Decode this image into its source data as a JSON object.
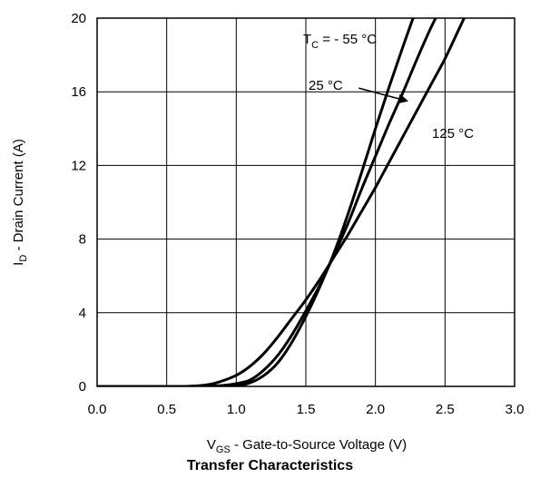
{
  "figure_caption": "Transfer Characteristics",
  "chart_data": {
    "type": "line",
    "title": "",
    "xlabel": {
      "main": "V",
      "sub": "GS",
      "rest": " - Gate-to-Source Voltage (V)"
    },
    "ylabel": {
      "main": "I",
      "sub": "D",
      "rest": " - Drain Current  (A)"
    },
    "xlim": [
      0.0,
      3.0
    ],
    "ylim": [
      0,
      20
    ],
    "x_ticks": [
      "0.0",
      "0.5",
      "1.0",
      "1.5",
      "2.0",
      "2.5",
      "3.0"
    ],
    "y_ticks": [
      "0",
      "4",
      "8",
      "12",
      "16",
      "20"
    ],
    "grid": true,
    "annotations": {
      "tc_prefix": "T",
      "tc_sub": "C",
      "tc_rest": " = - 55 °C",
      "t25": "25 °C",
      "t125": "125 °C"
    },
    "series": [
      {
        "name": "T_C = -55 °C",
        "x": [
          0.0,
          0.7,
          1.0,
          1.1,
          1.2,
          1.3,
          1.4,
          1.5,
          1.6,
          1.7,
          1.8,
          1.9,
          2.0,
          2.1,
          2.2,
          2.3,
          2.4
        ],
        "y": [
          0.0,
          0.0,
          0.05,
          0.2,
          0.6,
          1.3,
          2.4,
          3.8,
          5.4,
          7.2,
          9.3,
          11.6,
          14.0,
          16.3,
          18.5,
          20.6,
          22.5
        ]
      },
      {
        "name": "25 °C",
        "x": [
          0.0,
          0.7,
          0.9,
          1.0,
          1.1,
          1.2,
          1.3,
          1.4,
          1.5,
          1.6,
          1.7,
          1.8,
          1.9,
          2.0,
          2.1,
          2.2,
          2.3,
          2.4,
          2.5
        ],
        "y": [
          0.0,
          0.0,
          0.05,
          0.15,
          0.35,
          0.9,
          1.7,
          2.8,
          4.1,
          5.5,
          7.1,
          8.8,
          10.7,
          12.5,
          14.3,
          16.0,
          17.8,
          19.5,
          21.0
        ]
      },
      {
        "name": "125 °C",
        "x": [
          0.0,
          0.6,
          0.8,
          0.9,
          1.0,
          1.1,
          1.2,
          1.3,
          1.4,
          1.5,
          1.6,
          1.7,
          1.8,
          1.9,
          2.0,
          2.1,
          2.2,
          2.3,
          2.4,
          2.5,
          2.6,
          2.7
        ],
        "y": [
          0.0,
          0.0,
          0.1,
          0.3,
          0.6,
          1.1,
          1.8,
          2.7,
          3.7,
          4.7,
          5.8,
          7.0,
          8.2,
          9.5,
          10.8,
          12.2,
          13.6,
          15.0,
          16.4,
          17.8,
          19.4,
          21.0
        ]
      }
    ],
    "leader": {
      "from": [
        1.88,
        16.2
      ],
      "to": [
        2.23,
        15.5
      ]
    }
  }
}
